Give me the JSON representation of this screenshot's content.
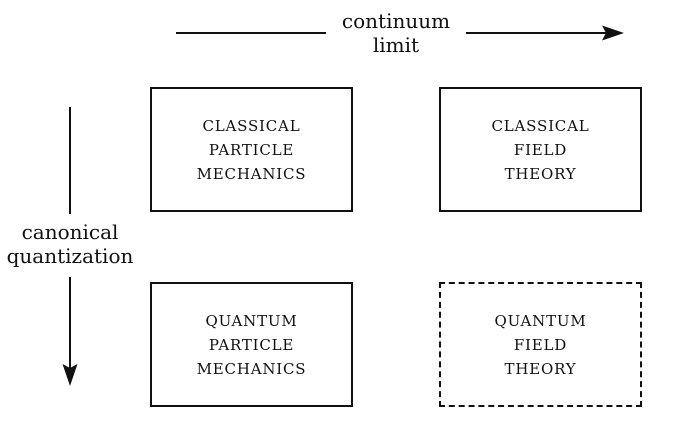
{
  "arrows": {
    "top_label_lines": [
      "continuum",
      "limit"
    ],
    "left_label_lines": [
      "canonical",
      "quantization"
    ]
  },
  "boxes": {
    "classical_particle": {
      "lines": [
        "CLASSICAL",
        "PARTICLE",
        "MECHANICS"
      ],
      "border": "solid"
    },
    "classical_field": {
      "lines": [
        "CLASSICAL",
        "FIELD",
        "THEORY"
      ],
      "border": "solid"
    },
    "quantum_particle": {
      "lines": [
        "QUANTUM",
        "PARTICLE",
        "MECHANICS"
      ],
      "border": "solid"
    },
    "quantum_field": {
      "lines": [
        "QUANTUM",
        "FIELD",
        "THEORY"
      ],
      "border": "dashed"
    }
  },
  "colors": {
    "ink": "#111111",
    "background": "#ffffff"
  }
}
